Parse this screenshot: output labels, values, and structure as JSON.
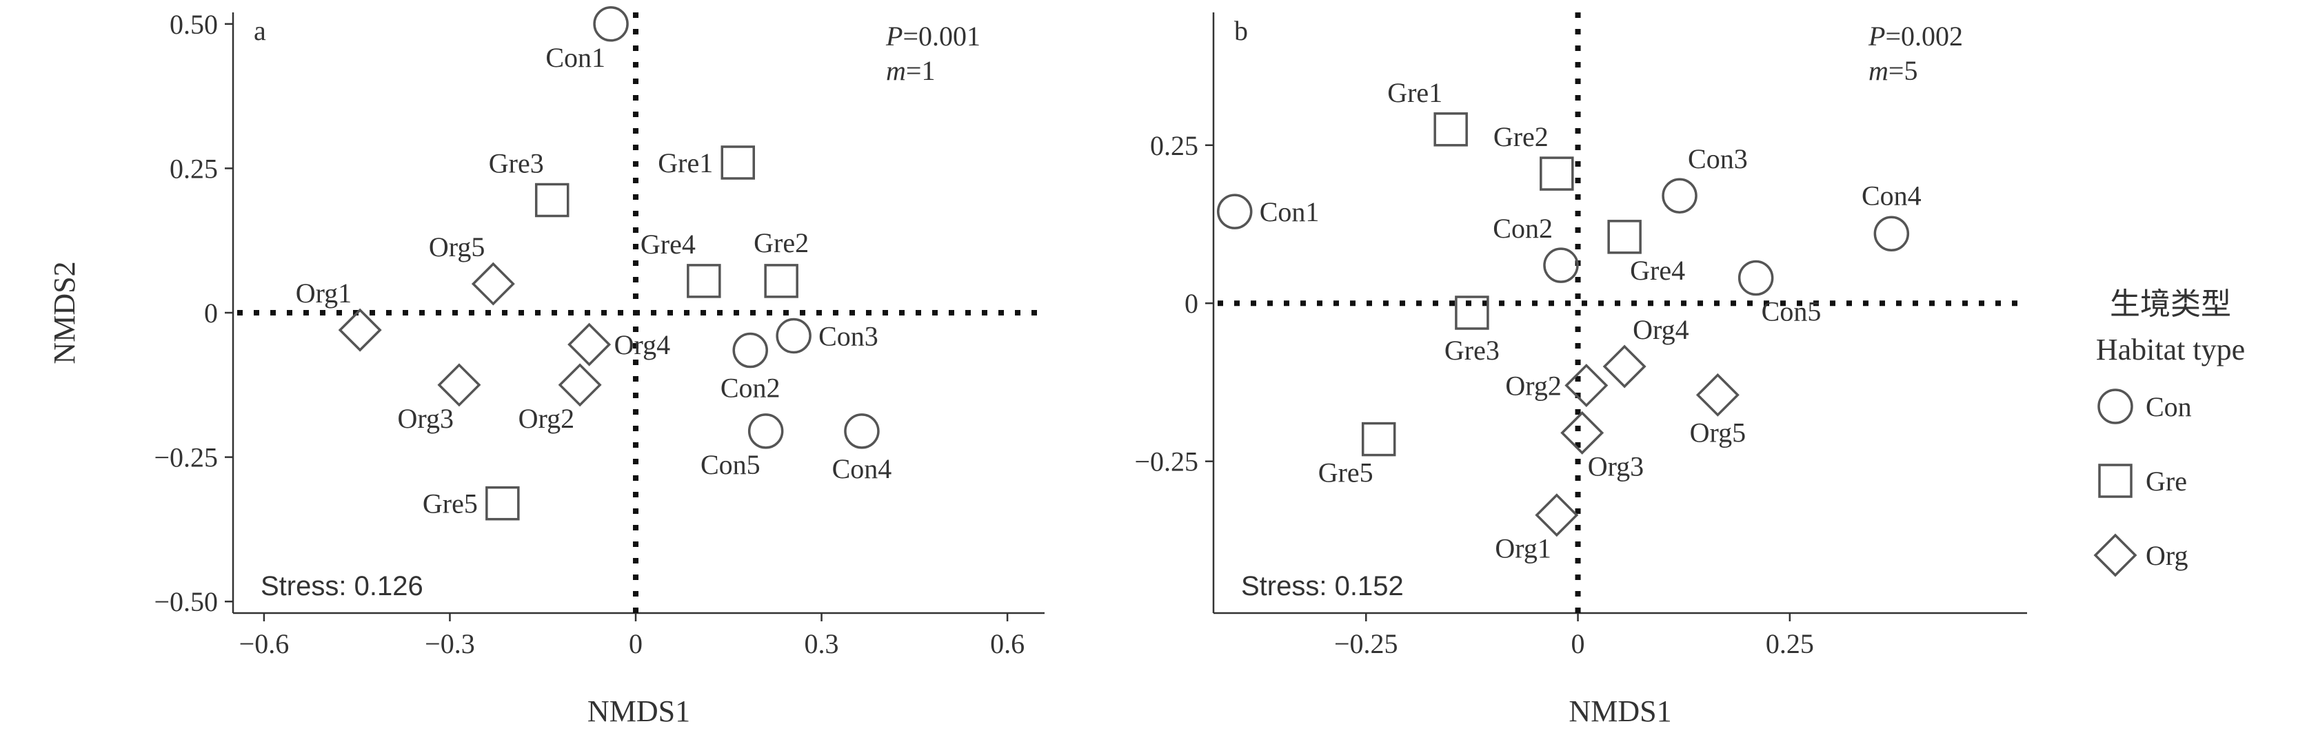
{
  "colors": {
    "axis": "#333333",
    "marker": "#555555",
    "ref_line": "#111111"
  },
  "legend": {
    "title_cn": "生境类型",
    "title_en": "Habitat type",
    "items": [
      {
        "label": "Con",
        "marker": "circle"
      },
      {
        "label": "Gre",
        "marker": "square"
      },
      {
        "label": "Org",
        "marker": "diamond"
      }
    ]
  },
  "chart_data": [
    {
      "type": "scatter",
      "panel_label": "a",
      "xlabel": "NMDS1",
      "ylabel": "NMDS2",
      "xlim": [
        -0.65,
        0.66
      ],
      "ylim": [
        -0.52,
        0.52
      ],
      "xticks": [
        {
          "value": -0.6,
          "label": "−0.6"
        },
        {
          "value": -0.3,
          "label": "−0.3"
        },
        {
          "value": 0,
          "label": "0"
        },
        {
          "value": 0.3,
          "label": "0.3"
        },
        {
          "value": 0.6,
          "label": "0.6"
        }
      ],
      "yticks": [
        {
          "value": 0.5,
          "label": "0.50"
        },
        {
          "value": 0.25,
          "label": "0.25"
        },
        {
          "value": 0,
          "label": "0"
        },
        {
          "value": -0.25,
          "label": "−0.25"
        },
        {
          "value": -0.5,
          "label": "−0.50"
        }
      ],
      "stat_p": "0.001",
      "stat_m": "1",
      "stress": "Stress: 0.126",
      "points": [
        {
          "label": "Con1",
          "group": "Con",
          "x": -0.04,
          "y": 0.5,
          "anchor": "below-left"
        },
        {
          "label": "Con2",
          "group": "Con",
          "x": 0.185,
          "y": -0.065,
          "anchor": "below"
        },
        {
          "label": "Con3",
          "group": "Con",
          "x": 0.255,
          "y": -0.04,
          "anchor": "right"
        },
        {
          "label": "Con4",
          "group": "Con",
          "x": 0.365,
          "y": -0.205,
          "anchor": "below"
        },
        {
          "label": "Con5",
          "group": "Con",
          "x": 0.21,
          "y": -0.205,
          "anchor": "below-left"
        },
        {
          "label": "Gre1",
          "group": "Gre",
          "x": 0.165,
          "y": 0.26,
          "anchor": "left"
        },
        {
          "label": "Gre2",
          "group": "Gre",
          "x": 0.235,
          "y": 0.055,
          "anchor": "above"
        },
        {
          "label": "Gre3",
          "group": "Gre",
          "x": -0.135,
          "y": 0.195,
          "anchor": "above-left"
        },
        {
          "label": "Gre4",
          "group": "Gre",
          "x": 0.11,
          "y": 0.055,
          "anchor": "above-left"
        },
        {
          "label": "Gre5",
          "group": "Gre",
          "x": -0.215,
          "y": -0.33,
          "anchor": "left"
        },
        {
          "label": "Org1",
          "group": "Org",
          "x": -0.445,
          "y": -0.03,
          "anchor": "above-left"
        },
        {
          "label": "Org2",
          "group": "Org",
          "x": -0.09,
          "y": -0.125,
          "anchor": "below-left"
        },
        {
          "label": "Org3",
          "group": "Org",
          "x": -0.285,
          "y": -0.125,
          "anchor": "below-left"
        },
        {
          "label": "Org4",
          "group": "Org",
          "x": -0.075,
          "y": -0.055,
          "anchor": "right"
        },
        {
          "label": "Org5",
          "group": "Org",
          "x": -0.23,
          "y": 0.05,
          "anchor": "above-left"
        }
      ]
    },
    {
      "type": "scatter",
      "panel_label": "b",
      "xlabel": "NMDS1",
      "ylabel": "",
      "xlim": [
        -0.43,
        0.53
      ],
      "ylim": [
        -0.49,
        0.46
      ],
      "xticks": [
        {
          "value": -0.25,
          "label": "−0.25"
        },
        {
          "value": 0,
          "label": "0"
        },
        {
          "value": 0.25,
          "label": "0.25"
        }
      ],
      "yticks": [
        {
          "value": 0.25,
          "label": "0.25"
        },
        {
          "value": 0,
          "label": "0"
        },
        {
          "value": -0.25,
          "label": "−0.25"
        }
      ],
      "stat_p": "0.002",
      "stat_m": "5",
      "stress": "Stress: 0.152",
      "points": [
        {
          "label": "Con1",
          "group": "Con",
          "x": -0.405,
          "y": 0.145,
          "anchor": "right"
        },
        {
          "label": "Con2",
          "group": "Con",
          "x": -0.02,
          "y": 0.06,
          "anchor": "above-left"
        },
        {
          "label": "Con3",
          "group": "Con",
          "x": 0.12,
          "y": 0.17,
          "anchor": "above-right"
        },
        {
          "label": "Con4",
          "group": "Con",
          "x": 0.37,
          "y": 0.11,
          "anchor": "above"
        },
        {
          "label": "Con5",
          "group": "Con",
          "x": 0.21,
          "y": 0.04,
          "anchor": "below-right"
        },
        {
          "label": "Gre1",
          "group": "Gre",
          "x": -0.15,
          "y": 0.275,
          "anchor": "above-left"
        },
        {
          "label": "Gre2",
          "group": "Gre",
          "x": -0.025,
          "y": 0.205,
          "anchor": "above-left"
        },
        {
          "label": "Gre3",
          "group": "Gre",
          "x": -0.125,
          "y": -0.015,
          "anchor": "below"
        },
        {
          "label": "Gre4",
          "group": "Gre",
          "x": 0.055,
          "y": 0.105,
          "anchor": "below-right"
        },
        {
          "label": "Gre5",
          "group": "Gre",
          "x": -0.235,
          "y": -0.215,
          "anchor": "below-left"
        },
        {
          "label": "Org1",
          "group": "Org",
          "x": -0.025,
          "y": -0.335,
          "anchor": "below-left"
        },
        {
          "label": "Org2",
          "group": "Org",
          "x": 0.01,
          "y": -0.13,
          "anchor": "left"
        },
        {
          "label": "Org3",
          "group": "Org",
          "x": 0.005,
          "y": -0.205,
          "anchor": "below-right"
        },
        {
          "label": "Org4",
          "group": "Org",
          "x": 0.055,
          "y": -0.1,
          "anchor": "above-right"
        },
        {
          "label": "Org5",
          "group": "Org",
          "x": 0.165,
          "y": -0.145,
          "anchor": "below"
        }
      ]
    }
  ]
}
